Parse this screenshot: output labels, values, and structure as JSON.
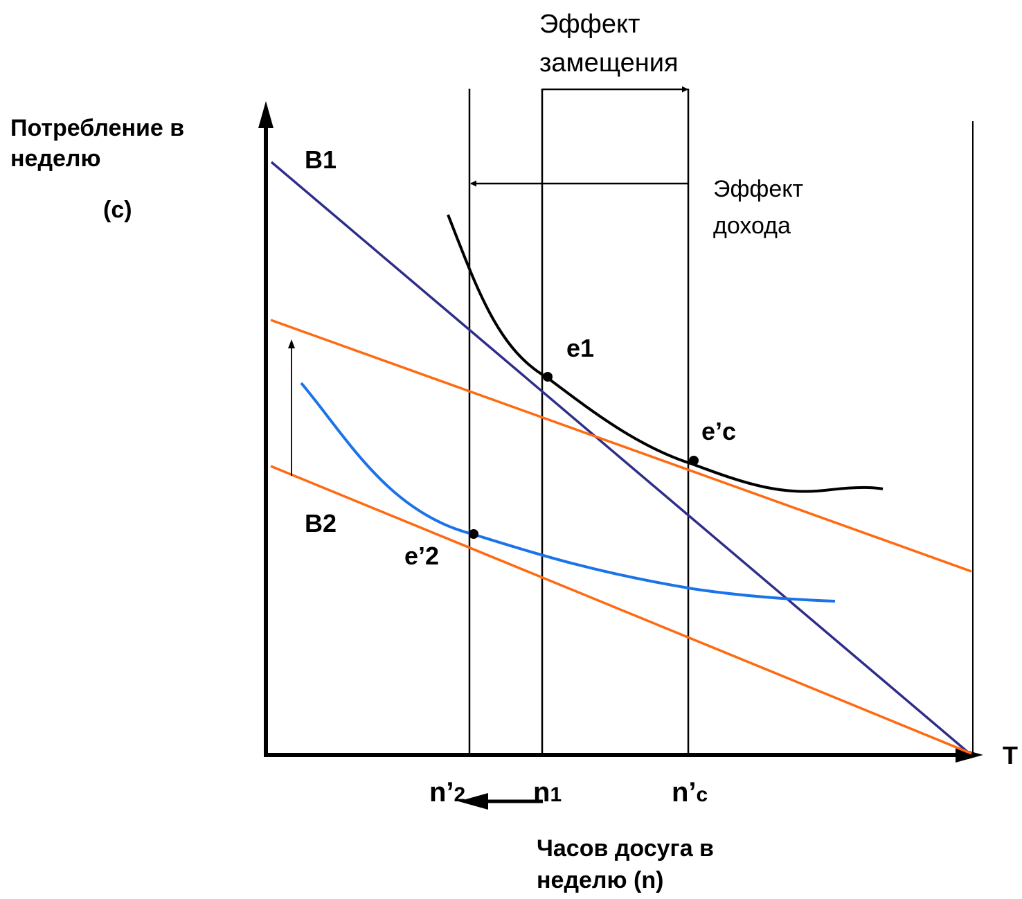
{
  "labels": {
    "y_axis_line1": "Потребление в",
    "y_axis_line2": "неделю",
    "y_axis_line3": "(c)",
    "x_axis_line1": "Часов досуга в",
    "x_axis_line2": "неделю (n)",
    "t_label": "T",
    "b1": "B1",
    "b2": "B2",
    "e1": "e1",
    "ec": "e’c",
    "e2": "e’2",
    "substitution_line1": "Эффект",
    "substitution_line2": "замещения",
    "income_line1": "Эффект",
    "income_line2": "дохода"
  },
  "ticks": {
    "n2": {
      "main": "n’",
      "sub": "2"
    },
    "n1": {
      "main": "n",
      "sub": "1"
    },
    "nc": {
      "main": "n’",
      "sub": "c"
    }
  },
  "colors": {
    "budget_b1": "#2e2e8a",
    "budget_orange": "#ff6a10",
    "indifference_high": "#000000",
    "indifference_low": "#1a73e8",
    "axes": "#000000"
  }
}
